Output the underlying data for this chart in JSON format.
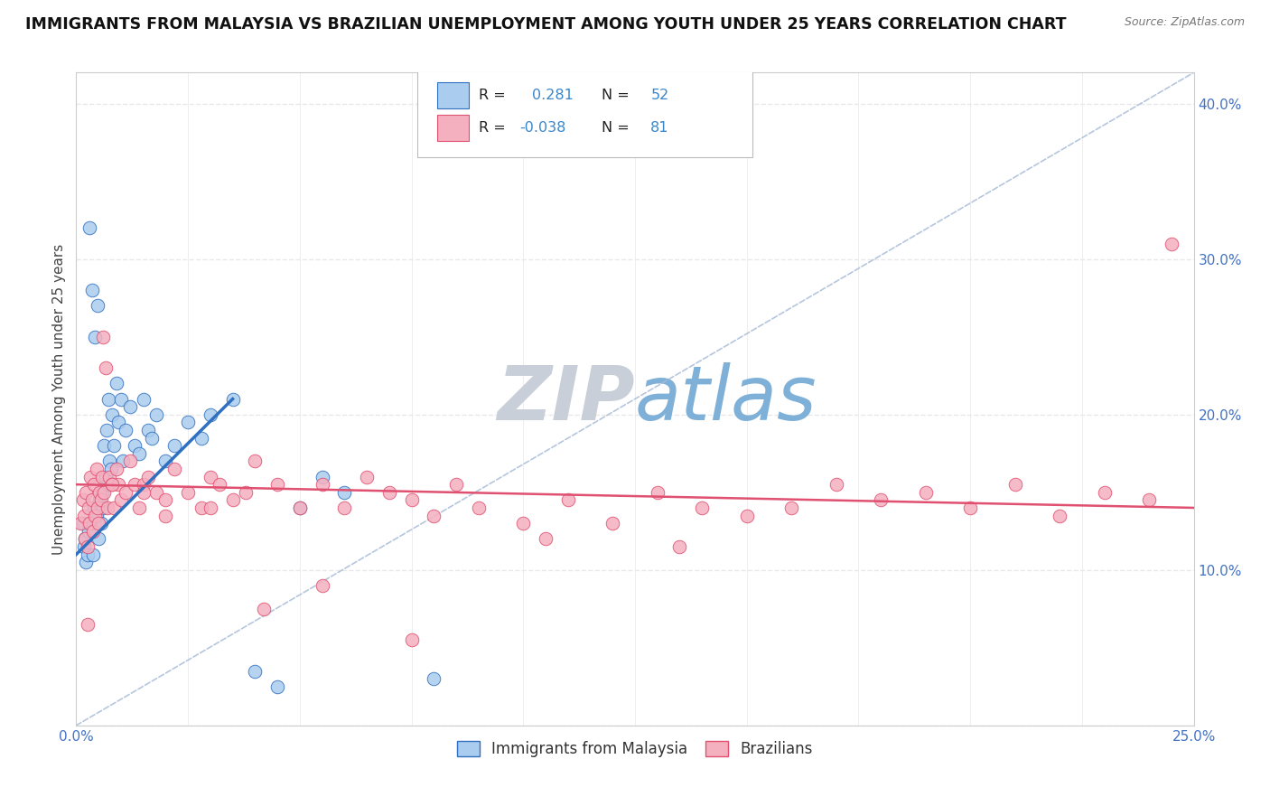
{
  "title": "IMMIGRANTS FROM MALAYSIA VS BRAZILIAN UNEMPLOYMENT AMONG YOUTH UNDER 25 YEARS CORRELATION CHART",
  "source": "Source: ZipAtlas.com",
  "ylabel": "Unemployment Among Youth under 25 years",
  "xlim": [
    0.0,
    25.0
  ],
  "ylim": [
    0.0,
    42.0
  ],
  "yticks": [
    0,
    10,
    20,
    30,
    40
  ],
  "ytick_labels": [
    "",
    "10.0%",
    "20.0%",
    "30.0%",
    "40.0%"
  ],
  "color_malaysia": "#aaccee",
  "color_brazil": "#f5b0c0",
  "color_malaysia_line": "#3070c0",
  "color_brazil_line": "#e05070",
  "color_diag_line": "#a8bcd8",
  "watermark_zip": "ZIP",
  "watermark_atlas": "atlas",
  "watermark_color_zip": "#c8cfd8",
  "watermark_color_atlas": "#7eb0d8",
  "background": "#ffffff",
  "grid_color": "#e8e8e8",
  "tick_color": "#4472c4",
  "scatter_malaysia_x": [
    0.15,
    0.18,
    0.2,
    0.22,
    0.25,
    0.28,
    0.3,
    0.32,
    0.35,
    0.38,
    0.4,
    0.42,
    0.45,
    0.48,
    0.5,
    0.52,
    0.55,
    0.58,
    0.6,
    0.62,
    0.65,
    0.68,
    0.7,
    0.72,
    0.75,
    0.78,
    0.8,
    0.85,
    0.9,
    0.95,
    1.0,
    1.05,
    1.1,
    1.2,
    1.3,
    1.4,
    1.5,
    1.6,
    1.7,
    1.8,
    2.0,
    2.2,
    2.5,
    2.8,
    3.0,
    3.5,
    4.0,
    4.5,
    5.0,
    5.5,
    6.0,
    8.0
  ],
  "scatter_malaysia_y": [
    13.0,
    11.5,
    12.0,
    10.5,
    11.0,
    12.5,
    32.0,
    13.0,
    28.0,
    11.0,
    14.0,
    25.0,
    13.5,
    27.0,
    12.0,
    14.5,
    13.0,
    15.0,
    14.0,
    18.0,
    16.0,
    19.0,
    15.5,
    21.0,
    17.0,
    16.5,
    20.0,
    18.0,
    22.0,
    19.5,
    21.0,
    17.0,
    19.0,
    20.5,
    18.0,
    17.5,
    21.0,
    19.0,
    18.5,
    20.0,
    17.0,
    18.0,
    19.5,
    18.5,
    20.0,
    21.0,
    3.5,
    2.5,
    14.0,
    16.0,
    15.0,
    3.0
  ],
  "scatter_brazil_x": [
    0.1,
    0.15,
    0.18,
    0.2,
    0.22,
    0.25,
    0.28,
    0.3,
    0.32,
    0.35,
    0.38,
    0.4,
    0.42,
    0.45,
    0.48,
    0.5,
    0.52,
    0.55,
    0.58,
    0.6,
    0.62,
    0.65,
    0.7,
    0.75,
    0.8,
    0.85,
    0.9,
    0.95,
    1.0,
    1.1,
    1.2,
    1.3,
    1.4,
    1.5,
    1.6,
    1.8,
    2.0,
    2.2,
    2.5,
    2.8,
    3.0,
    3.2,
    3.5,
    3.8,
    4.0,
    4.5,
    5.0,
    5.5,
    6.0,
    6.5,
    7.0,
    7.5,
    8.0,
    8.5,
    9.0,
    10.0,
    11.0,
    12.0,
    13.0,
    14.0,
    15.0,
    16.0,
    17.0,
    18.0,
    19.0,
    20.0,
    21.0,
    22.0,
    23.0,
    24.0,
    24.5,
    10.5,
    13.5,
    7.5,
    5.5,
    4.2,
    3.0,
    2.0,
    1.5,
    0.8,
    0.25
  ],
  "scatter_brazil_y": [
    13.0,
    14.5,
    13.5,
    12.0,
    15.0,
    11.5,
    14.0,
    13.0,
    16.0,
    14.5,
    12.5,
    15.5,
    13.5,
    16.5,
    14.0,
    13.0,
    15.0,
    14.5,
    16.0,
    25.0,
    15.0,
    23.0,
    14.0,
    16.0,
    15.5,
    14.0,
    16.5,
    15.5,
    14.5,
    15.0,
    17.0,
    15.5,
    14.0,
    15.5,
    16.0,
    15.0,
    14.5,
    16.5,
    15.0,
    14.0,
    16.0,
    15.5,
    14.5,
    15.0,
    17.0,
    15.5,
    14.0,
    15.5,
    14.0,
    16.0,
    15.0,
    14.5,
    13.5,
    15.5,
    14.0,
    13.0,
    14.5,
    13.0,
    15.0,
    14.0,
    13.5,
    14.0,
    15.5,
    14.5,
    15.0,
    14.0,
    15.5,
    13.5,
    15.0,
    14.5,
    31.0,
    12.0,
    11.5,
    5.5,
    9.0,
    7.5,
    14.0,
    13.5,
    15.0,
    15.5,
    6.5
  ],
  "trend_malaysia_x0": 0.0,
  "trend_malaysia_x1": 3.5,
  "trend_malaysia_y0": 11.0,
  "trend_malaysia_y1": 21.0,
  "trend_brazil_x0": 0.0,
  "trend_brazil_x1": 25.0,
  "trend_brazil_y0": 15.5,
  "trend_brazil_y1": 14.0,
  "diag_x0": 0.0,
  "diag_y0": 0.0,
  "diag_x1": 25.0,
  "diag_y1": 42.0
}
